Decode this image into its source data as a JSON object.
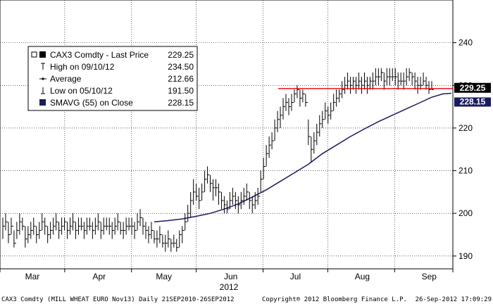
{
  "chart_data": {
    "type": "line",
    "title": "",
    "xlabel": "2012",
    "ylabel": "",
    "ylim": [
      187,
      250
    ],
    "grid": true,
    "x_ticks": [
      {
        "label": "Mar",
        "day": 15
      },
      {
        "label": "Apr",
        "day": 46
      },
      {
        "label": "May",
        "day": 76
      },
      {
        "label": "Jun",
        "day": 107
      },
      {
        "label": "Jul",
        "day": 137
      },
      {
        "label": "Aug",
        "day": 168
      },
      {
        "label": "Sep",
        "day": 199
      }
    ],
    "y_ticks": [
      190,
      200,
      210,
      220,
      230,
      240
    ],
    "legend": {
      "position": "top-left",
      "entries": [
        {
          "label": "CAX3 Comdty - Last Price",
          "value": "229.25"
        },
        {
          "label": "High on 09/10/12",
          "value": "234.50"
        },
        {
          "label": "Average",
          "value": "212.66"
        },
        {
          "label": "Low on 05/10/12",
          "value": "191.50"
        },
        {
          "label": "SMAVG (55) on Close",
          "value": "228.15"
        }
      ]
    },
    "last_price": {
      "value": 229.25,
      "label": "229.25",
      "color": "#e8000b"
    },
    "sma_tag": {
      "value": 228.15,
      "label": "228.15",
      "color": "#1a1a5e"
    },
    "colors": {
      "price": "#000000",
      "sma": "#1a1a5e",
      "last_line": "#e8000b",
      "grid": "#000000"
    },
    "series": [
      {
        "name": "CAX3 Comdty - Last Price",
        "style": "hlc-bars",
        "points": [
          [
            1,
            194,
            199,
            197
          ],
          [
            2,
            196,
            200,
            198
          ],
          [
            3,
            193,
            198,
            195
          ],
          [
            4,
            195,
            199,
            197
          ],
          [
            5,
            192,
            196,
            193
          ],
          [
            6,
            194,
            198,
            196
          ],
          [
            7,
            195,
            200,
            198
          ],
          [
            8,
            196,
            199,
            197
          ],
          [
            9,
            192,
            197,
            194
          ],
          [
            10,
            193,
            197,
            195
          ],
          [
            11,
            194,
            198,
            196
          ],
          [
            12,
            195,
            199,
            197
          ],
          [
            13,
            193,
            197,
            195
          ],
          [
            14,
            194,
            198,
            196
          ],
          [
            15,
            196,
            200,
            198
          ],
          [
            16,
            195,
            199,
            197
          ],
          [
            17,
            193,
            197,
            195
          ],
          [
            18,
            194,
            198,
            196
          ],
          [
            19,
            195,
            199,
            197
          ],
          [
            20,
            196,
            200,
            198
          ],
          [
            21,
            194,
            198,
            196
          ],
          [
            22,
            195,
            199,
            197
          ],
          [
            23,
            196,
            199,
            198
          ],
          [
            24,
            194,
            198,
            196
          ],
          [
            25,
            195,
            199,
            197
          ],
          [
            26,
            196,
            200,
            198
          ],
          [
            27,
            194,
            198,
            196
          ],
          [
            28,
            195,
            199,
            197
          ],
          [
            29,
            196,
            199,
            197
          ],
          [
            30,
            194,
            198,
            196
          ],
          [
            31,
            195,
            199,
            197
          ],
          [
            32,
            196,
            199,
            197
          ],
          [
            33,
            194,
            198,
            196
          ],
          [
            34,
            195,
            199,
            197
          ],
          [
            35,
            196,
            200,
            198
          ],
          [
            36,
            194,
            198,
            196
          ],
          [
            37,
            195,
            199,
            197
          ],
          [
            38,
            196,
            199,
            197
          ],
          [
            39,
            195,
            199,
            197
          ],
          [
            40,
            194,
            198,
            196
          ],
          [
            41,
            195,
            199,
            197
          ],
          [
            42,
            196,
            200,
            198
          ],
          [
            43,
            195,
            198,
            196
          ],
          [
            44,
            194,
            198,
            196
          ],
          [
            45,
            195,
            199,
            197
          ],
          [
            46,
            196,
            199,
            197
          ],
          [
            47,
            195,
            199,
            197
          ],
          [
            48,
            194,
            198,
            196
          ],
          [
            49,
            196,
            200,
            198
          ],
          [
            50,
            197,
            201,
            199
          ],
          [
            51,
            195,
            199,
            197
          ],
          [
            52,
            194,
            198,
            196
          ],
          [
            53,
            193,
            197,
            195
          ],
          [
            54,
            194,
            198,
            196
          ],
          [
            55,
            193,
            196,
            194
          ],
          [
            56,
            192,
            196,
            194
          ],
          [
            57,
            193,
            197,
            195
          ],
          [
            58,
            192,
            195,
            193
          ],
          [
            59,
            191,
            195,
            193
          ],
          [
            60,
            192,
            196,
            194
          ],
          [
            61,
            191,
            194,
            193
          ],
          [
            62,
            192,
            195,
            193
          ],
          [
            63,
            191,
            194,
            192
          ],
          [
            64,
            192,
            196,
            195
          ],
          [
            65,
            193,
            197,
            196
          ],
          [
            66,
            196,
            200,
            198
          ],
          [
            67,
            198,
            202,
            200
          ],
          [
            68,
            199,
            205,
            203
          ],
          [
            69,
            202,
            208,
            205
          ],
          [
            70,
            203,
            207,
            204
          ],
          [
            71,
            201,
            206,
            203
          ],
          [
            72,
            203,
            207,
            205
          ],
          [
            73,
            205,
            210,
            208
          ],
          [
            74,
            207,
            211,
            209
          ],
          [
            75,
            205,
            209,
            207
          ],
          [
            76,
            203,
            208,
            206
          ],
          [
            77,
            204,
            208,
            206
          ],
          [
            78,
            202,
            207,
            205
          ],
          [
            79,
            201,
            205,
            203
          ],
          [
            80,
            200,
            204,
            202
          ],
          [
            81,
            200,
            203,
            201
          ],
          [
            82,
            201,
            205,
            203
          ],
          [
            83,
            202,
            206,
            204
          ],
          [
            84,
            201,
            205,
            203
          ],
          [
            85,
            200,
            204,
            202
          ],
          [
            86,
            201,
            205,
            203
          ],
          [
            87,
            202,
            206,
            204
          ],
          [
            88,
            203,
            207,
            205
          ],
          [
            89,
            201,
            205,
            203
          ],
          [
            90,
            200,
            204,
            202
          ],
          [
            91,
            201,
            205,
            203
          ],
          [
            92,
            202,
            206,
            204
          ],
          [
            93,
            205,
            210,
            208
          ],
          [
            94,
            208,
            213,
            211
          ],
          [
            95,
            211,
            216,
            214
          ],
          [
            96,
            213,
            218,
            216
          ],
          [
            97,
            215,
            219,
            217
          ],
          [
            98,
            217,
            222,
            220
          ],
          [
            99,
            219,
            224,
            222
          ],
          [
            100,
            220,
            225,
            223
          ],
          [
            101,
            222,
            227,
            225
          ],
          [
            102,
            224,
            228,
            226
          ],
          [
            103,
            223,
            227,
            225
          ],
          [
            104,
            224,
            228,
            226
          ],
          [
            105,
            226,
            229,
            228
          ],
          [
            106,
            227,
            230,
            229
          ],
          [
            107,
            225,
            229,
            227
          ],
          [
            108,
            226,
            229,
            228
          ],
          [
            109,
            225,
            228,
            226
          ],
          [
            110,
            216,
            222,
            218
          ],
          [
            111,
            212,
            218,
            215
          ],
          [
            112,
            214,
            219,
            217
          ],
          [
            113,
            216,
            221,
            219
          ],
          [
            114,
            218,
            223,
            221
          ],
          [
            115,
            220,
            224,
            222
          ],
          [
            116,
            222,
            226,
            224
          ],
          [
            117,
            221,
            225,
            223
          ],
          [
            118,
            222,
            226,
            224
          ],
          [
            119,
            224,
            228,
            226
          ],
          [
            120,
            225,
            229,
            227
          ],
          [
            121,
            226,
            229,
            228
          ],
          [
            122,
            227,
            231,
            229
          ],
          [
            123,
            228,
            232,
            230
          ],
          [
            124,
            229,
            233,
            231
          ],
          [
            125,
            228,
            232,
            230
          ],
          [
            126,
            229,
            232,
            231
          ],
          [
            127,
            228,
            232,
            230
          ],
          [
            128,
            229,
            233,
            231
          ],
          [
            129,
            228,
            232,
            230
          ],
          [
            130,
            229,
            233,
            231
          ],
          [
            131,
            228,
            232,
            230
          ],
          [
            132,
            229,
            232,
            231
          ],
          [
            133,
            229,
            233,
            231
          ],
          [
            134,
            230,
            234,
            232
          ],
          [
            135,
            230,
            234,
            232
          ],
          [
            136,
            231,
            234,
            233
          ],
          [
            137,
            229,
            233,
            231
          ],
          [
            138,
            230,
            234,
            232
          ],
          [
            139,
            230,
            234,
            232
          ],
          [
            140,
            231,
            234,
            232
          ],
          [
            141,
            230,
            234,
            232
          ],
          [
            142,
            229,
            233,
            231
          ],
          [
            143,
            230,
            233,
            231
          ],
          [
            144,
            229,
            233,
            231
          ],
          [
            145,
            230,
            234,
            232
          ],
          [
            146,
            231,
            234,
            233
          ],
          [
            147,
            230,
            233,
            232
          ],
          [
            148,
            229,
            233,
            231
          ],
          [
            149,
            228,
            232,
            230
          ],
          [
            150,
            229,
            232,
            230
          ],
          [
            151,
            230,
            233,
            231
          ],
          [
            152,
            229,
            232,
            230
          ],
          [
            153,
            228,
            231,
            229
          ],
          [
            154,
            229,
            231,
            229
          ]
        ]
      },
      {
        "name": "SMAVG (55) on Close",
        "style": "line",
        "points": [
          [
            55,
            198.0
          ],
          [
            60,
            198.3
          ],
          [
            65,
            198.7
          ],
          [
            70,
            199.3
          ],
          [
            75,
            200.0
          ],
          [
            80,
            201.0
          ],
          [
            85,
            202.2
          ],
          [
            90,
            203.8
          ],
          [
            95,
            205.5
          ],
          [
            100,
            207.5
          ],
          [
            105,
            209.5
          ],
          [
            110,
            211.5
          ],
          [
            115,
            214.0
          ],
          [
            120,
            216.0
          ],
          [
            125,
            218.0
          ],
          [
            130,
            219.8
          ],
          [
            135,
            221.5
          ],
          [
            140,
            223.0
          ],
          [
            145,
            224.5
          ],
          [
            150,
            226.0
          ],
          [
            154,
            227.2
          ],
          [
            158,
            228.0
          ],
          [
            161,
            228.15
          ]
        ]
      }
    ]
  },
  "footer": {
    "left": "CAX3 Comdty (MILL WHEAT EURO  Nov13) Daily 21SEP2010-26SEP2012",
    "center": "Copyright® 2012 Bloomberg Finance L.P.",
    "right": "26-Sep-2012 17:09:29"
  }
}
